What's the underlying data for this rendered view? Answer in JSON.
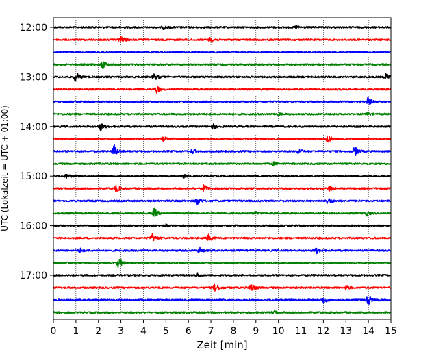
{
  "chart_data": {
    "type": "line",
    "title": "",
    "xlabel": "Zeit  [min]",
    "ylabel": "UTC (Lokalzeit = UTC + 01:00)",
    "xlim": [
      0,
      15
    ],
    "x_ticks": [
      0,
      1,
      2,
      3,
      4,
      5,
      6,
      7,
      8,
      9,
      10,
      11,
      12,
      13,
      14,
      15
    ],
    "x_tick_labels": [
      "0",
      "1",
      "2",
      "3",
      "4",
      "5",
      "6",
      "7",
      "8",
      "9",
      "10",
      "11",
      "12",
      "13",
      "14",
      "15"
    ],
    "y_tick_labels": [
      "12:00",
      "13:00",
      "14:00",
      "15:00",
      "16:00",
      "17:00"
    ],
    "grid": "vertical dotted at each minute",
    "series_colors": [
      "#000000",
      "#ff0000",
      "#0000ff",
      "#008000"
    ],
    "traces": [
      {
        "start": "12:00",
        "color": "#000000",
        "events": [
          [
            4.9,
            0.25
          ],
          [
            10.8,
            0.2
          ]
        ]
      },
      {
        "start": "12:15",
        "color": "#ff0000",
        "events": [
          [
            3.0,
            0.6
          ],
          [
            7.0,
            0.45
          ]
        ]
      },
      {
        "start": "12:30",
        "color": "#0000ff",
        "events": []
      },
      {
        "start": "12:45",
        "color": "#008000",
        "events": [
          [
            2.2,
            0.7
          ]
        ]
      },
      {
        "start": "13:00",
        "color": "#000000",
        "events": [
          [
            1.0,
            0.8
          ],
          [
            4.5,
            0.5
          ],
          [
            14.8,
            0.5
          ]
        ]
      },
      {
        "start": "13:15",
        "color": "#ff0000",
        "events": [
          [
            4.6,
            0.55
          ]
        ]
      },
      {
        "start": "13:30",
        "color": "#0000ff",
        "events": [
          [
            14.0,
            0.75
          ]
        ]
      },
      {
        "start": "13:45",
        "color": "#008000",
        "events": [
          [
            10.0,
            0.2
          ],
          [
            14.0,
            0.2
          ]
        ]
      },
      {
        "start": "14:00",
        "color": "#000000",
        "events": [
          [
            2.1,
            0.6
          ],
          [
            7.1,
            0.4
          ]
        ]
      },
      {
        "start": "14:15",
        "color": "#ff0000",
        "events": [
          [
            4.9,
            0.45
          ],
          [
            12.2,
            0.7
          ]
        ]
      },
      {
        "start": "14:30",
        "color": "#0000ff",
        "events": [
          [
            2.7,
            1.0
          ],
          [
            6.2,
            0.4
          ],
          [
            10.9,
            0.4
          ],
          [
            13.4,
            0.75
          ]
        ]
      },
      {
        "start": "14:45",
        "color": "#008000",
        "events": [
          [
            9.8,
            0.25
          ]
        ]
      },
      {
        "start": "15:00",
        "color": "#000000",
        "events": [
          [
            0.6,
            0.4
          ],
          [
            5.8,
            0.2
          ]
        ]
      },
      {
        "start": "15:15",
        "color": "#ff0000",
        "events": [
          [
            2.8,
            0.55
          ],
          [
            6.7,
            0.55
          ],
          [
            12.3,
            0.4
          ]
        ]
      },
      {
        "start": "15:30",
        "color": "#0000ff",
        "events": [
          [
            6.4,
            0.55
          ],
          [
            12.2,
            0.55
          ]
        ]
      },
      {
        "start": "15:45",
        "color": "#008000",
        "events": [
          [
            4.5,
            0.75
          ],
          [
            9.0,
            0.3
          ],
          [
            13.9,
            0.45
          ]
        ]
      },
      {
        "start": "16:00",
        "color": "#000000",
        "events": [
          [
            5.0,
            0.2
          ]
        ]
      },
      {
        "start": "16:15",
        "color": "#ff0000",
        "events": [
          [
            4.4,
            0.6
          ],
          [
            6.9,
            0.55
          ]
        ]
      },
      {
        "start": "16:30",
        "color": "#0000ff",
        "events": [
          [
            1.2,
            0.3
          ],
          [
            6.5,
            0.45
          ],
          [
            11.7,
            0.45
          ]
        ]
      },
      {
        "start": "16:45",
        "color": "#008000",
        "events": [
          [
            2.9,
            0.75
          ]
        ]
      },
      {
        "start": "17:00",
        "color": "#000000",
        "events": [
          [
            6.4,
            0.25
          ]
        ]
      },
      {
        "start": "17:15",
        "color": "#ff0000",
        "events": [
          [
            7.2,
            0.65
          ],
          [
            8.8,
            0.6
          ],
          [
            13.0,
            0.3
          ]
        ]
      },
      {
        "start": "17:30",
        "color": "#0000ff",
        "events": [
          [
            12.0,
            0.45
          ],
          [
            14.0,
            0.8
          ]
        ]
      },
      {
        "start": "17:45",
        "color": "#008000",
        "events": [
          [
            9.8,
            0.25
          ]
        ]
      }
    ]
  }
}
